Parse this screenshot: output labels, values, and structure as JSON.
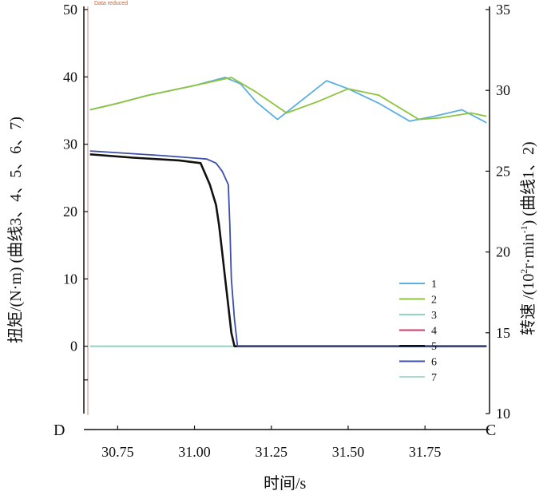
{
  "chart_data": {
    "type": "line",
    "note": "Data reduced",
    "corner_left": "D",
    "corner_right": "C",
    "xlabel": "时间/s",
    "ylabel_left": "扭矩/(N·m) (曲线3、4、5、6、7)",
    "ylabel_right_main": "转速 /(10",
    "ylabel_right_sup": "2",
    "ylabel_right_mid": "r·min",
    "ylabel_right_sup2": "-1",
    "ylabel_right_end": ") (曲线1、2)",
    "xlim": [
      30.64,
      31.96
    ],
    "xticks": [
      "30.75",
      "31.00",
      "31.25",
      "31.50",
      "31.75"
    ],
    "xtick_values": [
      30.75,
      31.0,
      31.25,
      31.5,
      31.75
    ],
    "ylim_left": [
      -10,
      50
    ],
    "yticks_left": [
      "0",
      "10",
      "20",
      "30",
      "40",
      "50"
    ],
    "ylim_right": [
      10,
      35
    ],
    "yticks_right": [
      "10",
      "15",
      "20",
      "25",
      "30",
      "35"
    ],
    "legend_position": "right-middle",
    "series": [
      {
        "name": "1",
        "axis": "right",
        "color": "#5aaee0",
        "x": [
          30.66,
          30.75,
          30.85,
          31.0,
          31.1,
          31.15,
          31.2,
          31.27,
          31.35,
          31.43,
          31.5,
          31.6,
          31.7,
          31.78,
          31.87,
          31.95
        ],
        "y": [
          28.8,
          29.2,
          29.7,
          30.3,
          30.8,
          30.4,
          29.3,
          28.2,
          29.4,
          30.6,
          30.1,
          29.2,
          28.1,
          28.4,
          28.8,
          28.0
        ]
      },
      {
        "name": "2",
        "axis": "right",
        "color": "#8cc43c",
        "x": [
          30.66,
          30.75,
          30.85,
          31.0,
          31.12,
          31.2,
          31.3,
          31.4,
          31.5,
          31.6,
          31.73,
          31.8,
          31.9,
          31.95
        ],
        "y": [
          28.8,
          29.2,
          29.7,
          30.3,
          30.8,
          29.9,
          28.6,
          29.3,
          30.1,
          29.7,
          28.2,
          28.3,
          28.6,
          28.4
        ]
      },
      {
        "name": "3",
        "axis": "left",
        "color": "#8fd3c0",
        "x": [
          30.66,
          31.13
        ],
        "y": [
          0,
          0
        ]
      },
      {
        "name": "4",
        "axis": "left",
        "color": "#d43a6a",
        "x": [
          31.13,
          31.95
        ],
        "y": [
          0,
          0
        ]
      },
      {
        "name": "5",
        "axis": "left",
        "color": "#111111",
        "x": [
          30.66,
          30.8,
          30.95,
          31.02,
          31.05,
          31.07,
          31.08,
          31.09,
          31.1,
          31.11,
          31.12,
          31.13,
          31.95
        ],
        "y": [
          28.5,
          28.0,
          27.6,
          27.2,
          24.0,
          21.0,
          18.0,
          14.0,
          10.0,
          6.0,
          2.0,
          0,
          0
        ]
      },
      {
        "name": "6",
        "axis": "left",
        "color": "#3c4ea8",
        "x": [
          30.66,
          30.9,
          31.04,
          31.07,
          31.09,
          31.11,
          31.115,
          31.12,
          31.13,
          31.14,
          31.95
        ],
        "y": [
          29.0,
          28.3,
          27.8,
          27.2,
          26.0,
          24.0,
          18.0,
          10.0,
          4.0,
          0,
          0
        ]
      },
      {
        "name": "7",
        "axis": "left",
        "color": "#a8dcc8",
        "x": [
          30.66,
          31.95
        ],
        "y": [
          0,
          0
        ]
      }
    ]
  }
}
